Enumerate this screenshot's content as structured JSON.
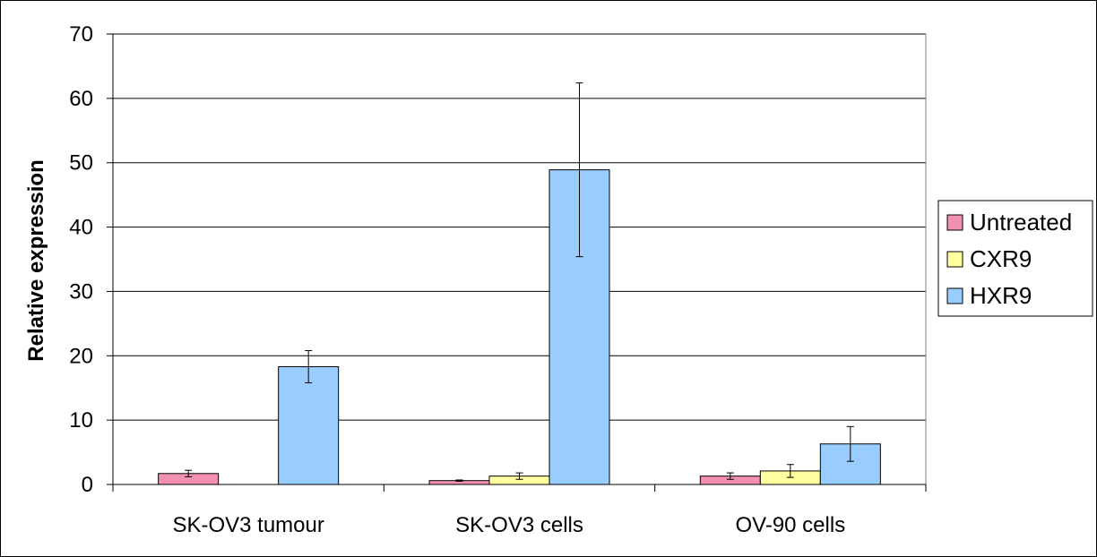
{
  "chart_data": {
    "type": "bar",
    "title": "",
    "xlabel": "",
    "ylabel": "Relative expression",
    "ylim": [
      0,
      70
    ],
    "yticks": [
      0,
      10,
      20,
      30,
      40,
      50,
      60,
      70
    ],
    "grid": true,
    "legend_position": "right",
    "categories": [
      "SK-OV3 tumour",
      "SK-OV3 cells",
      "OV-90 cells"
    ],
    "series": [
      {
        "name": "Untreated",
        "color": "#f48fb4",
        "values": [
          1.7,
          0.6,
          1.3
        ],
        "errors": [
          0.5,
          0.1,
          0.5
        ]
      },
      {
        "name": "CXR9",
        "color": "#ffffa0",
        "values": [
          null,
          1.3,
          2.1
        ],
        "errors": [
          null,
          0.5,
          1.0
        ]
      },
      {
        "name": "HXR9",
        "color": "#99ccff",
        "values": [
          18.3,
          48.9,
          6.3
        ],
        "errors": [
          2.5,
          13.5,
          2.7
        ]
      }
    ]
  }
}
